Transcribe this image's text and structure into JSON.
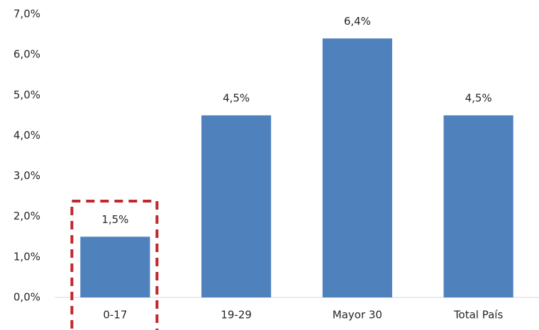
{
  "chart_data": {
    "type": "bar",
    "categories": [
      "0-17",
      "19-29",
      "Mayor 30",
      "Total País"
    ],
    "values": [
      1.5,
      4.5,
      6.4,
      4.5
    ],
    "value_labels": [
      "1,5%",
      "4,5%",
      "6,4%",
      "4,5%"
    ],
    "color": "#4f81bd",
    "ylim": [
      0,
      7
    ],
    "yticks": [
      {
        "value": 0,
        "label": "0,0%"
      },
      {
        "value": 1,
        "label": "1,0%"
      },
      {
        "value": 2,
        "label": "2,0%"
      },
      {
        "value": 3,
        "label": "3,0%"
      },
      {
        "value": 4,
        "label": "4,0%"
      },
      {
        "value": 5,
        "label": "5,0%"
      },
      {
        "value": 6,
        "label": "6,0%"
      },
      {
        "value": 7,
        "label": "7,0%"
      }
    ],
    "grid": false
  }
}
